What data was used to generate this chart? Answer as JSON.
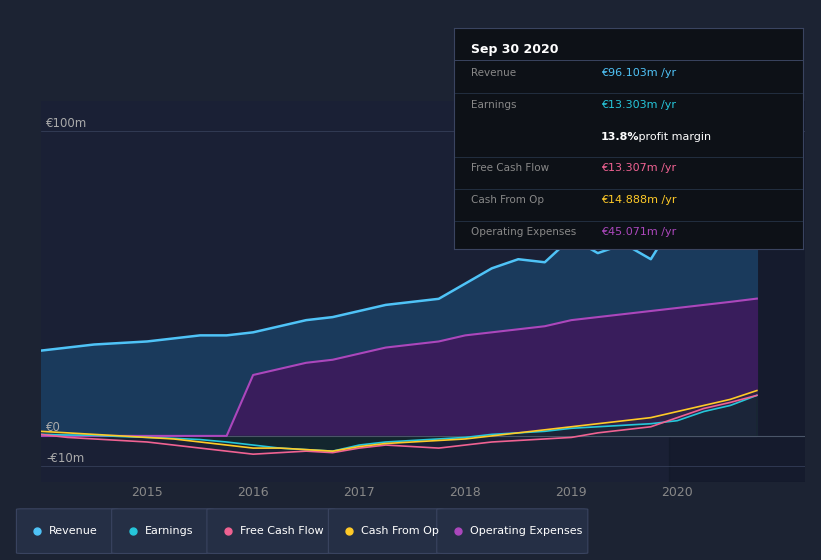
{
  "background_color": "#1c2333",
  "plot_bg_color": "#1a2035",
  "ylim": [
    -15000000,
    110000000
  ],
  "xlim_start": 2014.0,
  "xlim_end": 2021.2,
  "xtick_labels": [
    "2015",
    "2016",
    "2017",
    "2018",
    "2019",
    "2020"
  ],
  "xtick_positions": [
    2015,
    2016,
    2017,
    2018,
    2019,
    2020
  ],
  "revenue_color": "#4fc3f7",
  "revenue_fill": "#1a3a5c",
  "earnings_color": "#26c6da",
  "fcf_color": "#f06292",
  "cashfromop_color": "#ffca28",
  "opex_color": "#ab47bc",
  "opex_fill": "#3d1a5c",
  "legend_bg": "#252f45",
  "legend_border": "#3a4460",
  "tooltip_bg": "#0d1117",
  "tooltip_border": "#3a4460",
  "y_label_100m": "€100m",
  "y_label_0": "€0",
  "y_label_neg10m": "-€10m",
  "series_x": [
    2014.0,
    2014.25,
    2014.5,
    2014.75,
    2015.0,
    2015.25,
    2015.5,
    2015.75,
    2016.0,
    2016.25,
    2016.5,
    2016.75,
    2017.0,
    2017.25,
    2017.5,
    2017.75,
    2018.0,
    2018.25,
    2018.5,
    2018.75,
    2019.0,
    2019.25,
    2019.5,
    2019.75,
    2020.0,
    2020.25,
    2020.5,
    2020.75
  ],
  "revenue": [
    28000000,
    29000000,
    30000000,
    30500000,
    31000000,
    32000000,
    33000000,
    33000000,
    34000000,
    36000000,
    38000000,
    39000000,
    41000000,
    43000000,
    44000000,
    45000000,
    50000000,
    55000000,
    58000000,
    57000000,
    65000000,
    60000000,
    63000000,
    58000000,
    72000000,
    82000000,
    90000000,
    96103000
  ],
  "earnings": [
    500000,
    300000,
    200000,
    -200000,
    -500000,
    -800000,
    -1200000,
    -2000000,
    -3000000,
    -4000000,
    -4500000,
    -5000000,
    -3000000,
    -2000000,
    -1500000,
    -1000000,
    -500000,
    500000,
    1000000,
    1500000,
    2500000,
    3000000,
    3500000,
    4000000,
    5000000,
    8000000,
    10000000,
    13303000
  ],
  "fcf": [
    500000,
    -500000,
    -1000000,
    -1500000,
    -2000000,
    -3000000,
    -4000000,
    -5000000,
    -6000000,
    -5500000,
    -5000000,
    -5500000,
    -4000000,
    -3000000,
    -3500000,
    -4000000,
    -3000000,
    -2000000,
    -1500000,
    -1000000,
    -500000,
    1000000,
    2000000,
    3000000,
    6000000,
    9000000,
    11000000,
    13307000
  ],
  "cashfromop": [
    1500000,
    1000000,
    500000,
    0,
    -500000,
    -1000000,
    -2000000,
    -3000000,
    -4000000,
    -4000000,
    -4500000,
    -5000000,
    -3500000,
    -2500000,
    -2000000,
    -1500000,
    -1000000,
    0,
    1000000,
    2000000,
    3000000,
    4000000,
    5000000,
    6000000,
    8000000,
    10000000,
    12000000,
    14888000
  ],
  "opex": [
    0,
    0,
    0,
    0,
    0,
    0,
    0,
    0,
    20000000,
    22000000,
    24000000,
    25000000,
    27000000,
    29000000,
    30000000,
    31000000,
    33000000,
    34000000,
    35000000,
    36000000,
    38000000,
    39000000,
    40000000,
    41000000,
    42000000,
    43000000,
    44000000,
    45071000
  ],
  "tooltip_date": "Sep 30 2020",
  "tooltip_rows": [
    {
      "label": "Revenue",
      "value": "€96.103m /yr",
      "value_color": "#4fc3f7",
      "label_color": "#888888",
      "divider_after": true
    },
    {
      "label": "Earnings",
      "value": "€13.303m /yr",
      "value_color": "#26c6da",
      "label_color": "#888888",
      "divider_after": false
    },
    {
      "label": "",
      "value": "13.8% profit margin",
      "value_color": "#ffffff",
      "label_color": "#ffffff",
      "divider_after": true
    },
    {
      "label": "Free Cash Flow",
      "value": "€13.307m /yr",
      "value_color": "#f06292",
      "label_color": "#888888",
      "divider_after": true
    },
    {
      "label": "Cash From Op",
      "value": "€14.888m /yr",
      "value_color": "#ffca28",
      "label_color": "#888888",
      "divider_after": true
    },
    {
      "label": "Operating Expenses",
      "value": "€45.071m /yr",
      "value_color": "#ab47bc",
      "label_color": "#888888",
      "divider_after": false
    }
  ],
  "legend_items": [
    {
      "label": "Revenue",
      "color": "#4fc3f7"
    },
    {
      "label": "Earnings",
      "color": "#26c6da"
    },
    {
      "label": "Free Cash Flow",
      "color": "#f06292"
    },
    {
      "label": "Cash From Op",
      "color": "#ffca28"
    },
    {
      "label": "Operating Expenses",
      "color": "#ab47bc"
    }
  ]
}
